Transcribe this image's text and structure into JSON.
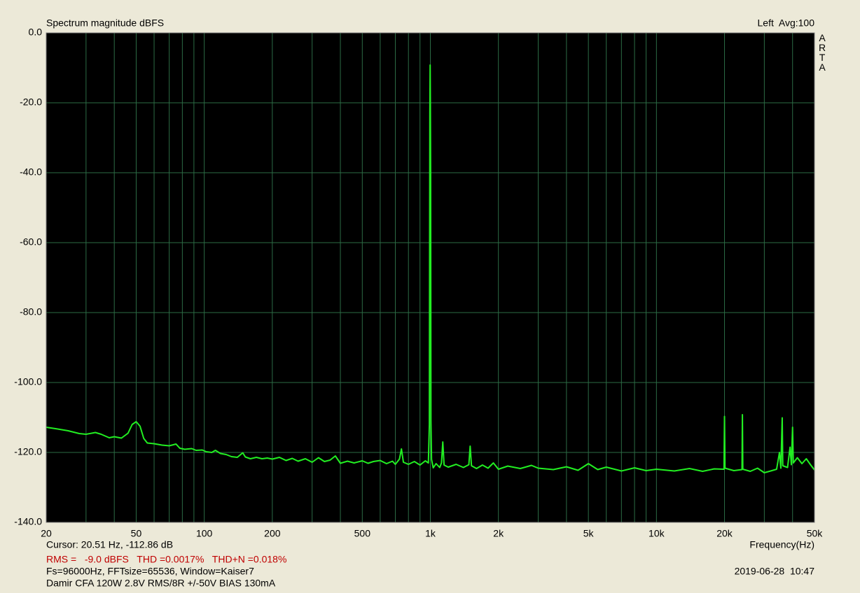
{
  "chart_data": {
    "type": "line",
    "title": "Spectrum magnitude dBFS",
    "channel_label": "Left  Avg:100",
    "brand": "ARTA",
    "xlabel": "Frequency(Hz)",
    "cursor": "Cursor: 20.51 Hz, -112.86 dB",
    "measurements": "RMS =   -9.0 dBFS   THD =0.0017%   THD+N =0.018%",
    "info": "Fs=96000Hz, FFTsize=65536, Window=Kaiser7",
    "notes": "Damir CFA 120W 2.8V RMS/8R +/-50V BIAS 130mA",
    "date": "2019-06-28  10:47",
    "xscale": "log",
    "grid": true,
    "background": "#000000",
    "grid_color": "#2c6b45",
    "xlim": [
      20,
      50000
    ],
    "ylim": [
      -140,
      0
    ],
    "xticks": [
      20,
      50,
      100,
      200,
      500,
      {
        "value": 1000,
        "label": "1k"
      },
      {
        "value": 2000,
        "label": "2k"
      },
      {
        "value": 5000,
        "label": "5k"
      },
      {
        "value": 10000,
        "label": "10k"
      },
      {
        "value": 20000,
        "label": "20k"
      },
      {
        "value": 50000,
        "label": "50k"
      }
    ],
    "xminor": [
      30,
      40,
      60,
      70,
      80,
      90,
      300,
      400,
      600,
      700,
      800,
      900,
      3000,
      4000,
      6000,
      7000,
      8000,
      9000,
      30000,
      40000
    ],
    "yticks": [
      {
        "value": 0,
        "label": "0.0"
      },
      {
        "value": -20,
        "label": "-20.0"
      },
      {
        "value": -40,
        "label": "-40.0"
      },
      {
        "value": -60,
        "label": "-60.0"
      },
      {
        "value": -80,
        "label": "-80.0"
      },
      {
        "value": -100,
        "label": "-100.0"
      },
      {
        "value": -120,
        "label": "-120.0"
      },
      {
        "value": -140,
        "label": "-140.0"
      }
    ],
    "x": [
      20,
      22,
      25,
      28,
      30,
      33,
      35,
      38,
      40,
      43,
      46,
      48,
      50,
      52,
      54,
      56,
      60,
      65,
      70,
      75,
      78,
      82,
      88,
      92,
      98,
      102,
      108,
      112,
      118,
      125,
      132,
      140,
      148,
      152,
      160,
      170,
      180,
      190,
      200,
      215,
      230,
      245,
      260,
      280,
      300,
      320,
      340,
      360,
      380,
      400,
      430,
      460,
      500,
      530,
      560,
      600,
      640,
      680,
      700,
      730,
      745,
      760,
      800,
      850,
      900,
      950,
      980,
      990,
      995,
      998,
      1000,
      1003,
      1006,
      1012,
      1030,
      1060,
      1100,
      1120,
      1135,
      1150,
      1200,
      1300,
      1400,
      1480,
      1500,
      1520,
      1600,
      1700,
      1800,
      1900,
      2000,
      2200,
      2500,
      2800,
      3000,
      3500,
      4000,
      4500,
      5000,
      5500,
      6000,
      7000,
      8000,
      9000,
      10000,
      12000,
      14000,
      16000,
      18000,
      19900,
      20000,
      20100,
      22000,
      23900,
      24000,
      24100,
      26000,
      28000,
      30000,
      32000,
      34000,
      35000,
      35500,
      36000,
      36200,
      38000,
      39000,
      39500,
      40000,
      40300,
      42000,
      44000,
      46000,
      48000,
      50000
    ],
    "series": [
      {
        "name": "Left",
        "color": "#22ee22",
        "values": [
          -112.8,
          -113.2,
          -113.8,
          -114.6,
          -114.8,
          -114.3,
          -114.8,
          -115.8,
          -115.5,
          -115.9,
          -114.5,
          -112,
          -111.2,
          -112.5,
          -116,
          -117.3,
          -117.5,
          -117.9,
          -118.1,
          -117.6,
          -118.8,
          -119.1,
          -118.9,
          -119.4,
          -119.3,
          -119.8,
          -120,
          -119.4,
          -120.3,
          -120.6,
          -121.2,
          -121.4,
          -120.1,
          -121.3,
          -121.8,
          -121.4,
          -121.8,
          -121.6,
          -121.9,
          -121.4,
          -122.3,
          -121.7,
          -122.5,
          -121.8,
          -122.8,
          -121.5,
          -122.6,
          -122.2,
          -121,
          -123.1,
          -122.5,
          -123,
          -122.4,
          -123.1,
          -122.6,
          -122.3,
          -123.2,
          -122.5,
          -123.4,
          -121.9,
          -119,
          -122.8,
          -123.4,
          -122.6,
          -123.6,
          -122.4,
          -123,
          -112,
          -23,
          -9.2,
          -20,
          -40,
          -111,
          -122,
          -124.4,
          -123.2,
          -124.3,
          -123,
          -117,
          -123.6,
          -124.2,
          -123.4,
          -124.3,
          -123.5,
          -118.2,
          -123.8,
          -124.6,
          -123.6,
          -124.5,
          -123,
          -124.8,
          -123.9,
          -124.6,
          -123.7,
          -124.5,
          -124.9,
          -124.1,
          -125.1,
          -123.2,
          -124.9,
          -124.2,
          -125.3,
          -124.4,
          -125.2,
          -124.8,
          -125.3,
          -124.6,
          -125.4,
          -124.7,
          -124.8,
          -109.7,
          -124.5,
          -125.2,
          -124.9,
          -109.2,
          -124.8,
          -125.4,
          -124.5,
          -125.8,
          -125.3,
          -124.8,
          -120,
          -124.5,
          -110.1,
          -123.8,
          -124.3,
          -118.5,
          -123.5,
          -112.8,
          -123,
          -121.5,
          -123.2,
          -121.8,
          -123.5,
          -125
        ]
      }
    ]
  }
}
